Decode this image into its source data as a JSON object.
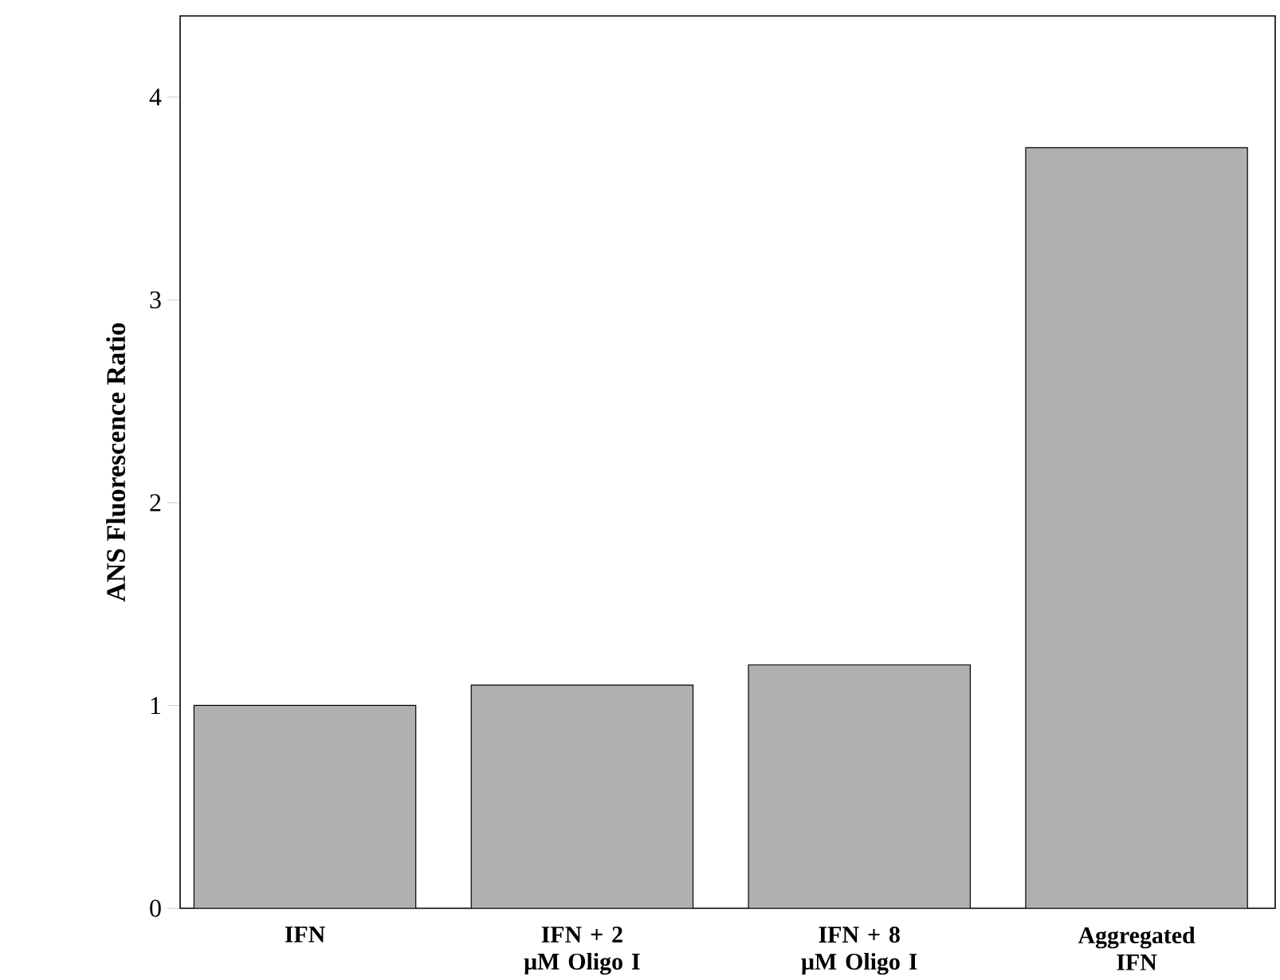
{
  "chart_data": {
    "type": "bar",
    "ylabel": "ANS Fluorescence Ratio",
    "categories": [
      "IFN",
      "IFN + 2 μM Oligo I",
      "IFN + 8 μM Oligo I",
      "Aggregated IFN"
    ],
    "values": [
      1.0,
      1.1,
      1.2,
      3.75
    ],
    "color": "#b0b0b0",
    "ylim": [
      0,
      4.4
    ],
    "yticks": [
      0,
      1,
      2,
      3,
      4
    ],
    "grid": false
  }
}
